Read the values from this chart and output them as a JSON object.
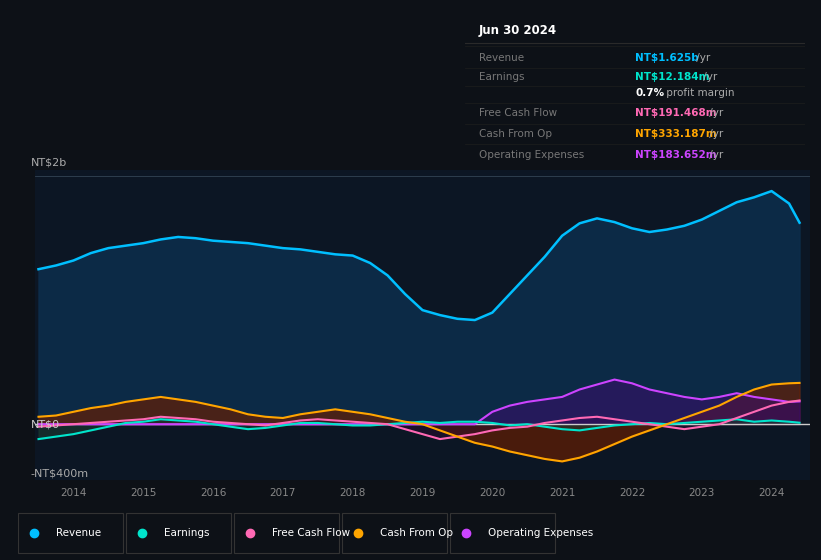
{
  "background_color": "#0d1117",
  "plot_bg_color": "#0c1624",
  "title_box": {
    "date": "Jun 30 2024",
    "rows": [
      {
        "label": "Revenue",
        "value": "NT$1.625b",
        "unit": " /yr",
        "value_color": "#00bfff"
      },
      {
        "label": "Earnings",
        "value": "NT$12.184m",
        "unit": " /yr",
        "value_color": "#00e5cc"
      },
      {
        "label": "",
        "value": "0.7%",
        "unit": " profit margin",
        "value_color": "#ffffff"
      },
      {
        "label": "Free Cash Flow",
        "value": "NT$191.468m",
        "unit": " /yr",
        "value_color": "#ff69b4"
      },
      {
        "label": "Cash From Op",
        "value": "NT$333.187m",
        "unit": " /yr",
        "value_color": "#ffa500"
      },
      {
        "label": "Operating Expenses",
        "value": "NT$183.652m",
        "unit": " /yr",
        "value_color": "#cc44ff"
      }
    ]
  },
  "x_ticks": [
    "2014",
    "2015",
    "2016",
    "2017",
    "2018",
    "2019",
    "2020",
    "2021",
    "2022",
    "2023",
    "2024"
  ],
  "legend": [
    {
      "label": "Revenue",
      "color": "#00bfff"
    },
    {
      "label": "Earnings",
      "color": "#00e5cc"
    },
    {
      "label": "Free Cash Flow",
      "color": "#ff69b4"
    },
    {
      "label": "Cash From Op",
      "color": "#ffa500"
    },
    {
      "label": "Operating Expenses",
      "color": "#cc44ff"
    }
  ],
  "series": {
    "x": [
      2013.5,
      2013.75,
      2014.0,
      2014.25,
      2014.5,
      2014.75,
      2015.0,
      2015.25,
      2015.5,
      2015.75,
      2016.0,
      2016.25,
      2016.5,
      2016.75,
      2017.0,
      2017.25,
      2017.5,
      2017.75,
      2018.0,
      2018.25,
      2018.5,
      2018.75,
      2019.0,
      2019.25,
      2019.5,
      2019.75,
      2020.0,
      2020.25,
      2020.5,
      2020.75,
      2021.0,
      2021.25,
      2021.5,
      2021.75,
      2022.0,
      2022.25,
      2022.5,
      2022.75,
      2023.0,
      2023.25,
      2023.5,
      2023.75,
      2024.0,
      2024.25,
      2024.4
    ],
    "revenue": [
      1.25,
      1.28,
      1.32,
      1.38,
      1.42,
      1.44,
      1.46,
      1.49,
      1.51,
      1.5,
      1.48,
      1.47,
      1.46,
      1.44,
      1.42,
      1.41,
      1.39,
      1.37,
      1.36,
      1.3,
      1.2,
      1.05,
      0.92,
      0.88,
      0.85,
      0.84,
      0.9,
      1.05,
      1.2,
      1.35,
      1.52,
      1.62,
      1.66,
      1.63,
      1.58,
      1.55,
      1.57,
      1.6,
      1.65,
      1.72,
      1.79,
      1.83,
      1.88,
      1.78,
      1.625
    ],
    "earnings": [
      -0.12,
      -0.1,
      -0.08,
      -0.05,
      -0.02,
      0.01,
      0.02,
      0.04,
      0.03,
      0.02,
      0.0,
      -0.02,
      -0.04,
      -0.03,
      -0.01,
      0.01,
      0.01,
      0.0,
      -0.01,
      -0.01,
      0.0,
      0.01,
      0.02,
      0.01,
      0.02,
      0.02,
      0.01,
      -0.01,
      0.0,
      -0.02,
      -0.04,
      -0.05,
      -0.03,
      -0.01,
      0.0,
      0.01,
      0.0,
      0.01,
      0.02,
      0.03,
      0.04,
      0.02,
      0.03,
      0.02,
      0.012
    ],
    "fcf": [
      -0.02,
      -0.01,
      0.0,
      0.01,
      0.02,
      0.03,
      0.04,
      0.06,
      0.05,
      0.04,
      0.02,
      0.01,
      0.0,
      -0.01,
      0.01,
      0.03,
      0.04,
      0.03,
      0.02,
      0.01,
      0.0,
      -0.04,
      -0.08,
      -0.12,
      -0.1,
      -0.08,
      -0.05,
      -0.03,
      -0.02,
      0.01,
      0.03,
      0.05,
      0.06,
      0.04,
      0.02,
      0.0,
      -0.02,
      -0.04,
      -0.02,
      0.0,
      0.05,
      0.1,
      0.15,
      0.18,
      0.191
    ],
    "cashfromop": [
      0.06,
      0.07,
      0.1,
      0.13,
      0.15,
      0.18,
      0.2,
      0.22,
      0.2,
      0.18,
      0.15,
      0.12,
      0.08,
      0.06,
      0.05,
      0.08,
      0.1,
      0.12,
      0.1,
      0.08,
      0.05,
      0.02,
      0.0,
      -0.05,
      -0.1,
      -0.15,
      -0.18,
      -0.22,
      -0.25,
      -0.28,
      -0.3,
      -0.27,
      -0.22,
      -0.16,
      -0.1,
      -0.05,
      0.0,
      0.05,
      0.1,
      0.15,
      0.22,
      0.28,
      0.32,
      0.33,
      0.333
    ],
    "opex": [
      0.0,
      0.0,
      0.0,
      0.0,
      0.0,
      0.0,
      0.0,
      0.0,
      0.0,
      0.0,
      0.0,
      0.0,
      0.0,
      0.0,
      0.0,
      0.0,
      0.0,
      0.0,
      0.0,
      0.0,
      0.0,
      0.0,
      0.0,
      0.0,
      0.0,
      0.0,
      0.1,
      0.15,
      0.18,
      0.2,
      0.22,
      0.28,
      0.32,
      0.36,
      0.33,
      0.28,
      0.25,
      0.22,
      0.2,
      0.22,
      0.25,
      0.22,
      0.2,
      0.18,
      0.184
    ]
  }
}
